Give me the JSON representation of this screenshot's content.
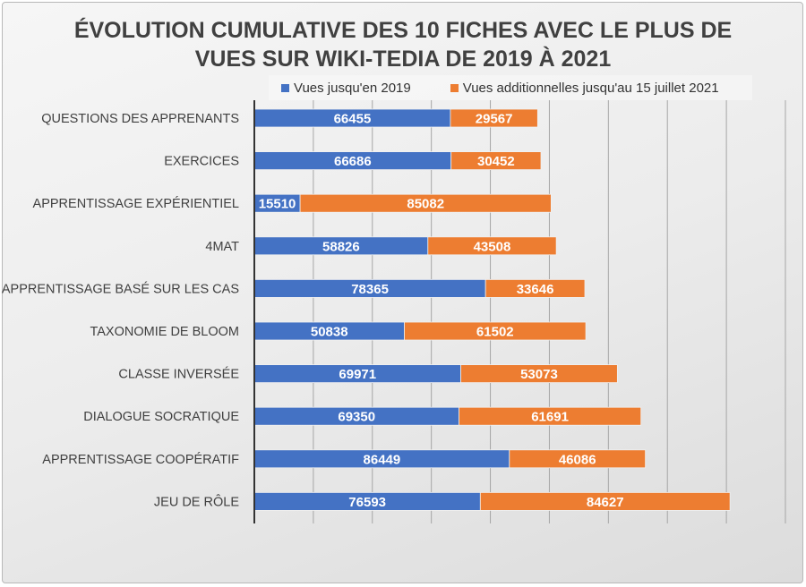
{
  "chart_data": {
    "type": "bar",
    "orientation": "horizontal",
    "stacked": true,
    "title_lines": [
      "ÉVOLUTION CUMULATIVE DES 10 FICHES  AVEC LE PLUS DE",
      "VUES SUR WIKI-TEDIA DE 2019 À 2021"
    ],
    "categories": [
      "QUESTIONS DES APPRENANTS",
      "EXERCICES",
      "APPRENTISSAGE EXPÉRIENTIEL",
      "4MAT",
      "APPRENTISSAGE BASÉ SUR LES CAS",
      "TAXONOMIE DE BLOOM",
      "CLASSE INVERSÉE",
      "DIALOGUE SOCRATIQUE",
      "APPRENTISSAGE COOPÉRATIF",
      "JEU DE RÔLE"
    ],
    "series": [
      {
        "name": "Vues jusqu'en 2019",
        "color": "#4472c4",
        "values": [
          66455,
          66686,
          15510,
          58826,
          78365,
          50838,
          69971,
          69350,
          86449,
          76593
        ]
      },
      {
        "name": "Vues additionnelles jusqu'au 15 juillet 2021",
        "color": "#ed7d31",
        "values": [
          29567,
          30452,
          85082,
          43508,
          33646,
          61502,
          53073,
          61691,
          46086,
          84627
        ]
      }
    ],
    "xlim": [
      0,
      180000
    ],
    "x_gridlines_step": 20000,
    "grid": true,
    "legend": "top",
    "xlabel": "",
    "ylabel": ""
  }
}
